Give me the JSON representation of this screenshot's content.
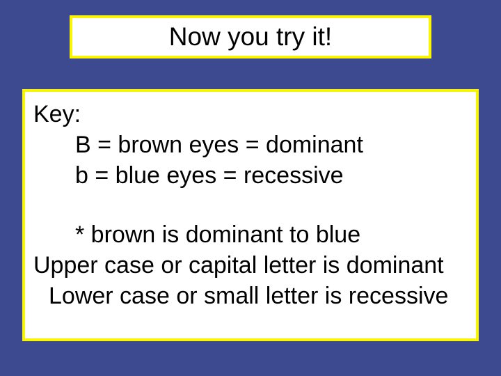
{
  "slide": {
    "background_color": "#3e4a8f",
    "box_border_color": "#f9f504",
    "box_background_color": "#ffffff",
    "text_color": "#000000",
    "font_family": "Comic Sans MS",
    "title_fontsize": 37,
    "body_fontsize": 34
  },
  "title": {
    "text": "Now you try it!"
  },
  "key": {
    "label": "Key:",
    "line1": "B = brown eyes = dominant",
    "line2": "b = blue eyes = recessive",
    "note": "* brown is dominant to blue",
    "rule1": "Upper case or capital letter is dominant",
    "rule2": "Lower case or small letter is recessive"
  }
}
